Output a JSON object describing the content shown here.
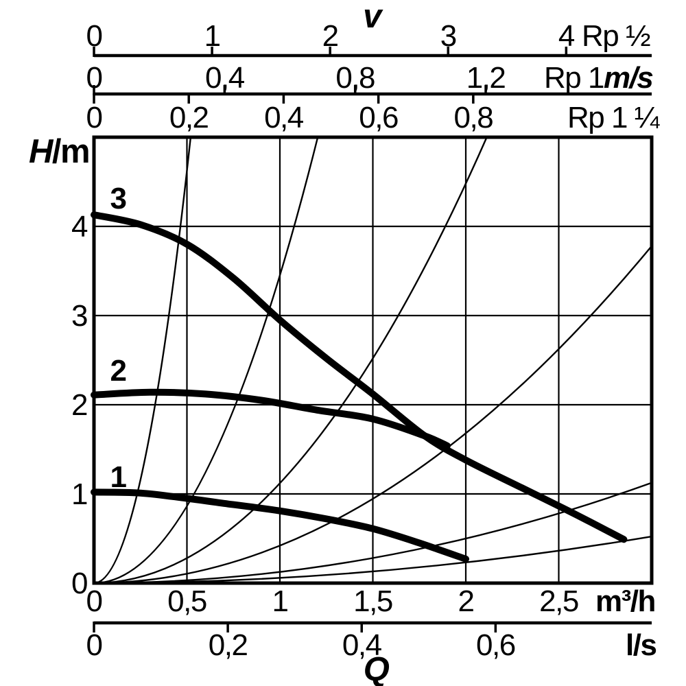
{
  "labels": {
    "velocity_title": "v",
    "head_symbol": "H",
    "head_unit": "/m",
    "flow_symbol": "Q",
    "unit_ms": "m/s",
    "unit_m3h": "m³/h",
    "unit_ls": "l/s",
    "pipe_rp_half": "Rp ½",
    "pipe_rp_1": "Rp 1",
    "pipe_rp_1_quarter": "Rp 1 ¼"
  },
  "chart_data": {
    "type": "line",
    "title": "Circulator pump duty chart: head H/m versus flow Q, with pipe-velocity scales v (m/s) for Rp ½, Rp 1 and Rp 1 ¼ pipes",
    "ylabel": "H/m",
    "xlabel": "Q",
    "grid": true,
    "y_range": [
      0,
      5
    ],
    "x_range_m3h": [
      0,
      3
    ],
    "y_gridlines": [
      1,
      2,
      3,
      4
    ],
    "x_gridlines_m3h": [
      0.5,
      1,
      1.5,
      2,
      2.5
    ],
    "y_axis_ticks": {
      "values": [
        0,
        1,
        2,
        3,
        4
      ],
      "labels": [
        "0",
        "1",
        "2",
        "3",
        "4"
      ]
    },
    "x_axis_m3h": {
      "unit": "m³/h",
      "values": [
        0,
        0.5,
        1,
        1.5,
        2,
        2.5
      ],
      "labels": [
        "0",
        "0,5",
        "1",
        "1,5",
        "2",
        "2,5"
      ]
    },
    "x_axis_ls": {
      "unit": "l/s",
      "m3h_per_unit": 3.6,
      "values": [
        0,
        0.2,
        0.4,
        0.6
      ],
      "labels": [
        "0",
        "0,2",
        "0,4",
        "0,6"
      ]
    },
    "velocity_axes": {
      "title": "v",
      "unit": "m/s",
      "rows": [
        {
          "pipe": "Rp ½",
          "m3h_per_ms": 0.635,
          "values": [
            0,
            1,
            2,
            3,
            4
          ],
          "labels": [
            "0",
            "1",
            "2",
            "3",
            "4"
          ]
        },
        {
          "pipe": "Rp 1",
          "m3h_per_ms": 1.756,
          "values": [
            0,
            0.4,
            0.8,
            1.2
          ],
          "labels": [
            "0",
            "0,4",
            "0,8",
            "1,2"
          ]
        },
        {
          "pipe": "Rp 1 ¼",
          "m3h_per_ms": 2.55,
          "values": [
            0,
            0.2,
            0.4,
            0.6,
            0.8
          ],
          "labels": [
            "0",
            "0,2",
            "0,4",
            "0,6",
            "0,8"
          ]
        }
      ]
    },
    "pump_curves": [
      {
        "name": "1",
        "points_q_h": [
          [
            0,
            1.02
          ],
          [
            0.25,
            1.01
          ],
          [
            0.5,
            0.95
          ],
          [
            0.75,
            0.88
          ],
          [
            1.0,
            0.81
          ],
          [
            1.25,
            0.72
          ],
          [
            1.5,
            0.61
          ],
          [
            1.75,
            0.45
          ],
          [
            2.0,
            0.27
          ]
        ]
      },
      {
        "name": "2",
        "points_q_h": [
          [
            0,
            2.11
          ],
          [
            0.3,
            2.14
          ],
          [
            0.6,
            2.12
          ],
          [
            0.9,
            2.05
          ],
          [
            1.2,
            1.94
          ],
          [
            1.5,
            1.84
          ],
          [
            1.78,
            1.65
          ],
          [
            1.9,
            1.54
          ]
        ]
      },
      {
        "name": "3",
        "points_q_h": [
          [
            0,
            4.13
          ],
          [
            0.25,
            4.02
          ],
          [
            0.5,
            3.8
          ],
          [
            0.75,
            3.42
          ],
          [
            1.0,
            2.95
          ],
          [
            1.25,
            2.52
          ],
          [
            1.5,
            2.12
          ],
          [
            1.78,
            1.65
          ],
          [
            2.0,
            1.38
          ],
          [
            2.3,
            1.07
          ],
          [
            2.6,
            0.76
          ],
          [
            2.85,
            0.49
          ]
        ]
      }
    ],
    "pipe_friction_curves": [
      {
        "k_m_per_m3h2": 18.5
      },
      {
        "k_m_per_m3h2": 3.45
      },
      {
        "k_m_per_m3h2": 1.12
      },
      {
        "k_m_per_m3h2": 0.42
      },
      {
        "k_m_per_m3h2": 0.125
      },
      {
        "k_m_per_m3h2": 0.058
      }
    ]
  }
}
